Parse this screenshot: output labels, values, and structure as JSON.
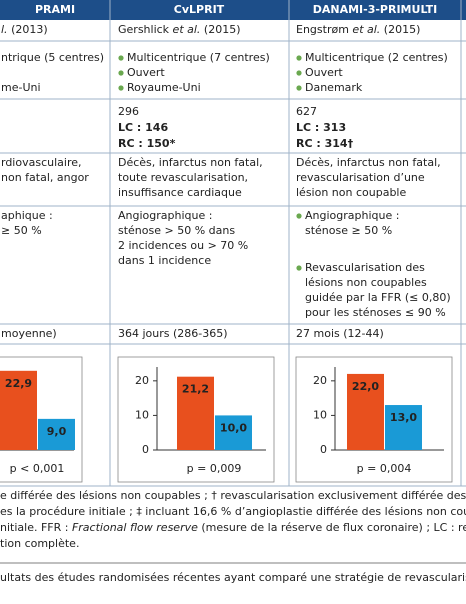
{
  "header": {
    "columns": [
      "PRAMI",
      "CvLPRIT",
      "DANAMI-3-PRIMULTI"
    ]
  },
  "columns": [
    {
      "authors": {
        "etal": "l.",
        "year": "(2013)"
      },
      "design": [
        "ntrique (5 centres)",
        "me-Uni"
      ],
      "criteria": [
        "rdiovasculaire,",
        "non fatal, angor"
      ],
      "definition": [
        "aphique :",
        "≥ 50 %"
      ],
      "followup": "moyenne)",
      "chart": {
        "values": [
          22.9,
          9.0
        ],
        "value_labels": [
          "22,9",
          "9,0"
        ],
        "ylim": [
          0,
          24
        ],
        "p": "p < 0,001"
      }
    },
    {
      "authors": {
        "name": "Gershlick",
        "etal": "et al.",
        "year": "(2015)"
      },
      "design": [
        "Multicentrique (7 centres)",
        "Ouvert",
        "Royaume-Uni"
      ],
      "patients": {
        "total": "296",
        "lc": "LC : 146",
        "rc": "RC : 150*"
      },
      "criteria": [
        "Décès, infarctus non fatal,",
        "toute revascularisation,",
        "insuffisance cardiaque"
      ],
      "definition": [
        "Angiographique :",
        "sténose > 50 % dans",
        "2 incidences ou > 70 %",
        "dans 1 incidence"
      ],
      "followup": "364 jours (286-365)",
      "chart": {
        "values": [
          21.2,
          10.0
        ],
        "value_labels": [
          "21,2",
          "10,0"
        ],
        "ylim": [
          0,
          24
        ],
        "yticks": [
          0,
          10,
          20
        ],
        "p": "p = 0,009"
      }
    },
    {
      "authors": {
        "name": "Engstrøm",
        "etal": "et al.",
        "year": "(2015)"
      },
      "design": [
        "Multicentrique (2 centres)",
        "Ouvert",
        "Danemark"
      ],
      "patients": {
        "total": "627",
        "lc": "LC : 313",
        "rc": "RC : 314†"
      },
      "criteria": [
        "Décès, infarctus non fatal,",
        "revascularisation d’une",
        "lésion non coupable"
      ],
      "definition_items": [
        [
          "Angiographique :",
          "sténose ≥ 50 %"
        ],
        [
          "Revascularisation des",
          "lésions non coupables",
          "guidée par la FFR (≤ 0,80)",
          "pour les sténoses ≤ 90 %"
        ]
      ],
      "followup": "27 mois (12-44)",
      "chart": {
        "values": [
          22.0,
          13.0
        ],
        "value_labels": [
          "22,0",
          "13,0"
        ],
        "ylim": [
          0,
          24
        ],
        "yticks": [
          0,
          10,
          20
        ],
        "p": "p = 0,004"
      }
    }
  ],
  "bar_colors": [
    "#e8501e",
    "#1a9ad6"
  ],
  "footnotes": {
    "line1": "e différée des lésions non coupables ; † revascularisation exclusivement différée des",
    "line2": "es la procédure initiale ; ‡ incluant 16,6 % d’angioplastie différée des lésions non cou",
    "line3a": "nitiale. FFR : ",
    "line3b": "Fractional flow reserve",
    "line3c": " (mesure de la réserve de flux coronaire) ; LC : rev",
    "line4": "tion complète."
  },
  "caption": "ultats des études randomisées récentes ayant comparé une stratégie de revascularisation com"
}
